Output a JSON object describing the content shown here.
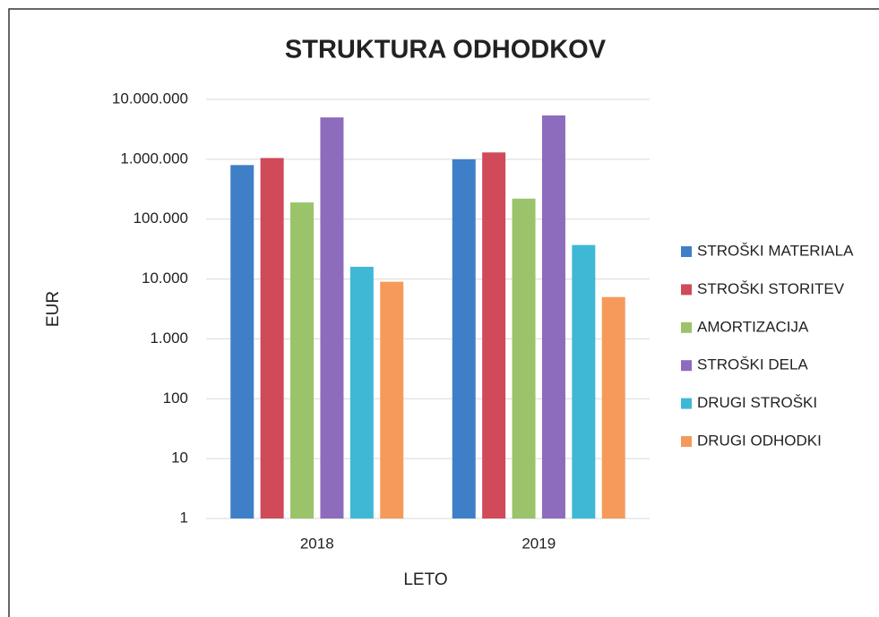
{
  "chart_data": {
    "type": "bar",
    "title": "STRUKTURA ODHODKOV",
    "x_label": "LETO",
    "y_label": "EUR",
    "categories": [
      "2018",
      "2019"
    ],
    "series": [
      {
        "name": "STROŠKI MATERIALA",
        "color": "#3f7fc8",
        "values": [
          800000,
          1000000
        ]
      },
      {
        "name": "STROŠKI STORITEV",
        "color": "#d04a5a",
        "values": [
          1050000,
          1300000
        ]
      },
      {
        "name": "AMORTIZACIJA",
        "color": "#9ac36a",
        "values": [
          190000,
          220000
        ]
      },
      {
        "name": "STROŠKI DELA",
        "color": "#8d6bbd",
        "values": [
          5000000,
          5400000
        ]
      },
      {
        "name": "DRUGI STROŠKI",
        "color": "#3fb8d6",
        "values": [
          16000,
          37000
        ]
      },
      {
        "name": "DRUGI ODHODKI",
        "color": "#f59a5a",
        "values": [
          9000,
          5000
        ]
      }
    ],
    "ylim": [
      1,
      10000000
    ],
    "log": true,
    "yticks": [
      1,
      10,
      100,
      {
        "value": 1000,
        "label": "1.000"
      },
      {
        "value": 10000,
        "label": "10.000"
      },
      {
        "value": 100000,
        "label": "100.000"
      },
      {
        "value": 1000000,
        "label": "1.000.000"
      },
      {
        "value": 10000000,
        "label": "10.000.000"
      }
    ],
    "grid": true,
    "legend": "right"
  }
}
